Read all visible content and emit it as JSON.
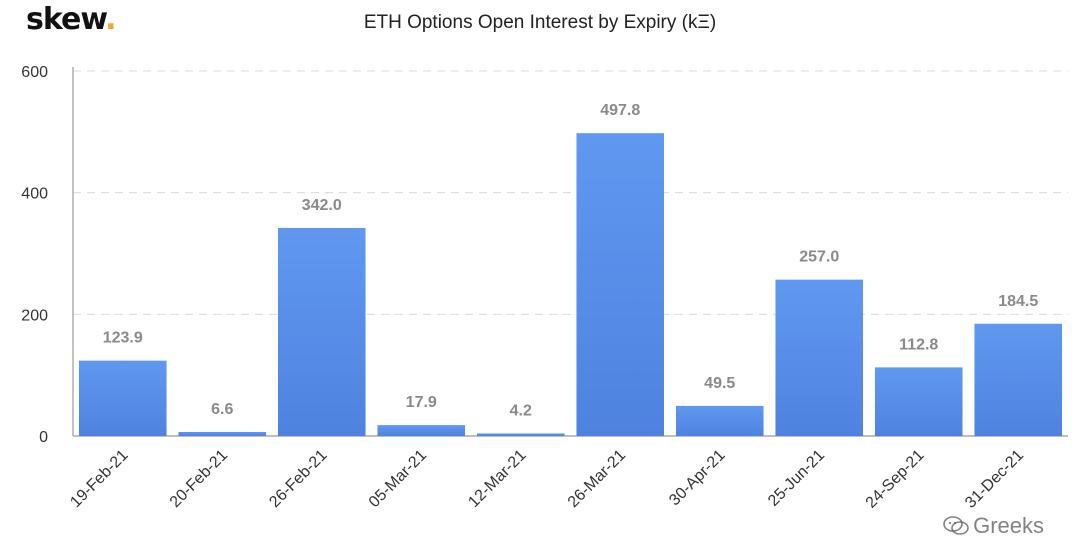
{
  "brand": {
    "name": "skew",
    "dot": "."
  },
  "watermark": {
    "text": "Greeks",
    "icon": "wechat-icon"
  },
  "chart_data": {
    "type": "bar",
    "title": "ETH Options Open Interest by Expiry (kΞ)",
    "xlabel": "",
    "ylabel": "",
    "categories": [
      "19-Feb-21",
      "20-Feb-21",
      "26-Feb-21",
      "05-Mar-21",
      "12-Mar-21",
      "26-Mar-21",
      "30-Apr-21",
      "25-Jun-21",
      "24-Sep-21",
      "31-Dec-21"
    ],
    "values": [
      123.9,
      6.6,
      342.0,
      17.9,
      4.2,
      497.8,
      49.5,
      257.0,
      112.8,
      184.5
    ],
    "data_labels": [
      "123.9",
      "6.6",
      "342.0",
      "17.9",
      "4.2",
      "497.8",
      "49.5",
      "257.0",
      "112.8",
      "184.5"
    ],
    "ylim": [
      0,
      600
    ],
    "yticks": [
      0,
      200,
      400,
      600
    ],
    "grid": true,
    "colors": {
      "bar_top": "#6098f0",
      "bar_bottom": "#4f82e0",
      "grid": "#d9d9d9"
    }
  }
}
